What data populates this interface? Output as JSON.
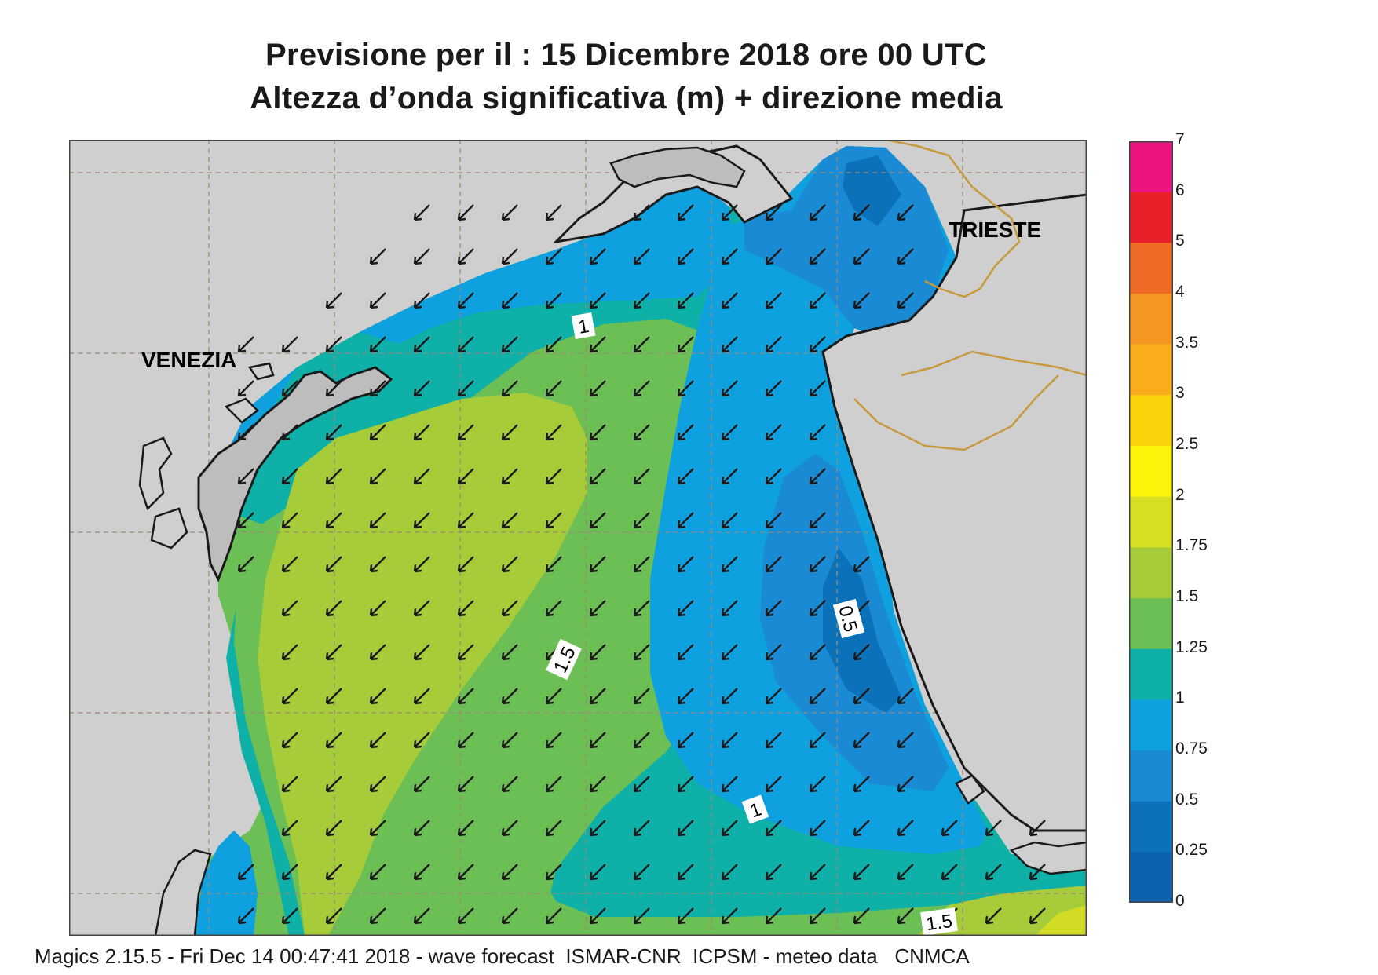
{
  "header": {
    "title_line1": "Previsione per il  :  15 Dicembre  2018   ore 00 UTC",
    "title_line2": "Altezza d’onda significativa (m) + direzione media"
  },
  "map": {
    "cities": [
      "VENEZIA",
      "TRIESTE"
    ],
    "contour_labels": [
      "1",
      "1.5",
      "0.5",
      "1",
      "1.5"
    ],
    "colors": {
      "land": "#cfcfcf",
      "coastline": "#1a1a1a",
      "border": "#c69a3d",
      "grid": "#9a8a78",
      "arrow": "#1a1a1a"
    },
    "field_colors": {
      "0.25-0.5": "#0b72b9",
      "0.5-0.75": "#1a8ad4",
      "0.75-1": "#0fa0e0",
      "1-1.25": "#0fb0a8",
      "1.25-1.5": "#6cbf54",
      "1.5-1.75": "#a7cc3a",
      "1.75-2": "#d2dc24"
    },
    "direction": "south-west"
  },
  "legend": {
    "labels": [
      "7",
      "6",
      "5",
      "4",
      "3.5",
      "3",
      "2.5",
      "2",
      "1.75",
      "1.5",
      "1.25",
      "1",
      "0.75",
      "0.5",
      "0.25",
      "0"
    ],
    "colors": [
      "#ee1480",
      "#e8202a",
      "#ef6a25",
      "#f59522",
      "#f9ad1d",
      "#fcd30a",
      "#fdf20a",
      "#d7df23",
      "#a7cc3a",
      "#6cbf54",
      "#0fb0a8",
      "#0fa0e0",
      "#1a8ad4",
      "#0b72b9",
      "#0b61ae"
    ]
  },
  "footer": {
    "text": "Magics 2.15.5 - Fri Dec 14 00:47:41 2018 - wave forecast  ISMAR-CNR  ICPSM - meteo data   CNMCA"
  }
}
